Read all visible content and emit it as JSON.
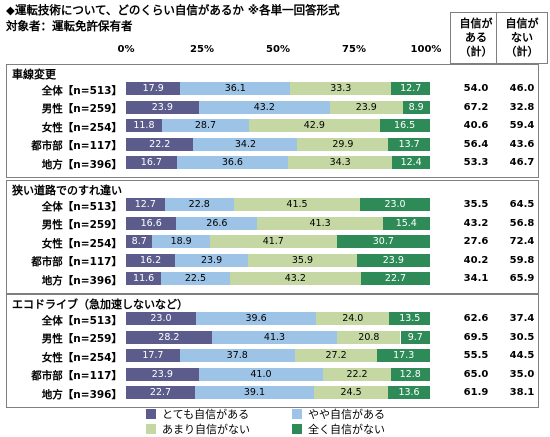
{
  "title": "◆運転技術について、どのくらい自信があるか ※各単一回答形式",
  "subtitle": "対象者：運転免許保有者",
  "column_headers": [
    "自信が\nある\n（計）",
    "自信が\nない\n（計）"
  ],
  "colors": [
    "#5b5b8c",
    "#9dc3e6",
    "#c5d8a4",
    "#2e8b57"
  ],
  "chart_data": {
    "type": "bar",
    "stacked": true,
    "orientation": "horizontal",
    "x_ticks": [
      "0%",
      "25%",
      "50%",
      "75%",
      "100%"
    ],
    "xlim": [
      0,
      100
    ],
    "legend_position": "bottom",
    "series": [
      {
        "name": "とても自信がある"
      },
      {
        "name": "やや自信がある"
      },
      {
        "name": "あまり自信がない"
      },
      {
        "name": "全く自信がない"
      }
    ],
    "groups": [
      {
        "title": "車線変更",
        "rows": [
          {
            "label": "全体【n=513】",
            "values": [
              17.9,
              36.1,
              33.3,
              12.7
            ],
            "confident": "54.0",
            "not_confident": "46.0"
          },
          {
            "label": "男性【n=259】",
            "values": [
              23.9,
              43.2,
              23.9,
              8.9
            ],
            "confident": "67.2",
            "not_confident": "32.8"
          },
          {
            "label": "女性【n=254】",
            "values": [
              11.8,
              28.7,
              42.9,
              16.5
            ],
            "confident": "40.6",
            "not_confident": "59.4"
          },
          {
            "label": "都市部【n=117】",
            "values": [
              22.2,
              34.2,
              29.9,
              13.7
            ],
            "confident": "56.4",
            "not_confident": "43.6"
          },
          {
            "label": "地方【n=396】",
            "values": [
              16.7,
              36.6,
              34.3,
              12.4
            ],
            "confident": "53.3",
            "not_confident": "46.7"
          }
        ]
      },
      {
        "title": "狭い道路でのすれ違い",
        "rows": [
          {
            "label": "全体【n=513】",
            "values": [
              12.7,
              22.8,
              41.5,
              23.0
            ],
            "confident": "35.5",
            "not_confident": "64.5"
          },
          {
            "label": "男性【n=259】",
            "values": [
              16.6,
              26.6,
              41.3,
              15.4
            ],
            "confident": "43.2",
            "not_confident": "56.8"
          },
          {
            "label": "女性【n=254】",
            "values": [
              8.7,
              18.9,
              41.7,
              30.7
            ],
            "confident": "27.6",
            "not_confident": "72.4"
          },
          {
            "label": "都市部【n=117】",
            "values": [
              16.2,
              23.9,
              35.9,
              23.9
            ],
            "confident": "40.2",
            "not_confident": "59.8"
          },
          {
            "label": "地方【n=396】",
            "values": [
              11.6,
              22.5,
              43.2,
              22.7
            ],
            "confident": "34.1",
            "not_confident": "65.9"
          }
        ]
      },
      {
        "title": "エコドライブ（急加速しないなど）",
        "rows": [
          {
            "label": "全体【n=513】",
            "values": [
              23.0,
              39.6,
              24.0,
              13.5
            ],
            "confident": "62.6",
            "not_confident": "37.4"
          },
          {
            "label": "男性【n=259】",
            "values": [
              28.2,
              41.3,
              20.8,
              9.7
            ],
            "confident": "69.5",
            "not_confident": "30.5"
          },
          {
            "label": "女性【n=254】",
            "values": [
              17.7,
              37.8,
              27.2,
              17.3
            ],
            "confident": "55.5",
            "not_confident": "44.5"
          },
          {
            "label": "都市部【n=117】",
            "values": [
              23.9,
              41.0,
              22.2,
              12.8
            ],
            "confident": "65.0",
            "not_confident": "35.0"
          },
          {
            "label": "地方【n=396】",
            "values": [
              22.7,
              39.1,
              24.5,
              13.6
            ],
            "confident": "61.9",
            "not_confident": "38.1"
          }
        ]
      }
    ]
  }
}
